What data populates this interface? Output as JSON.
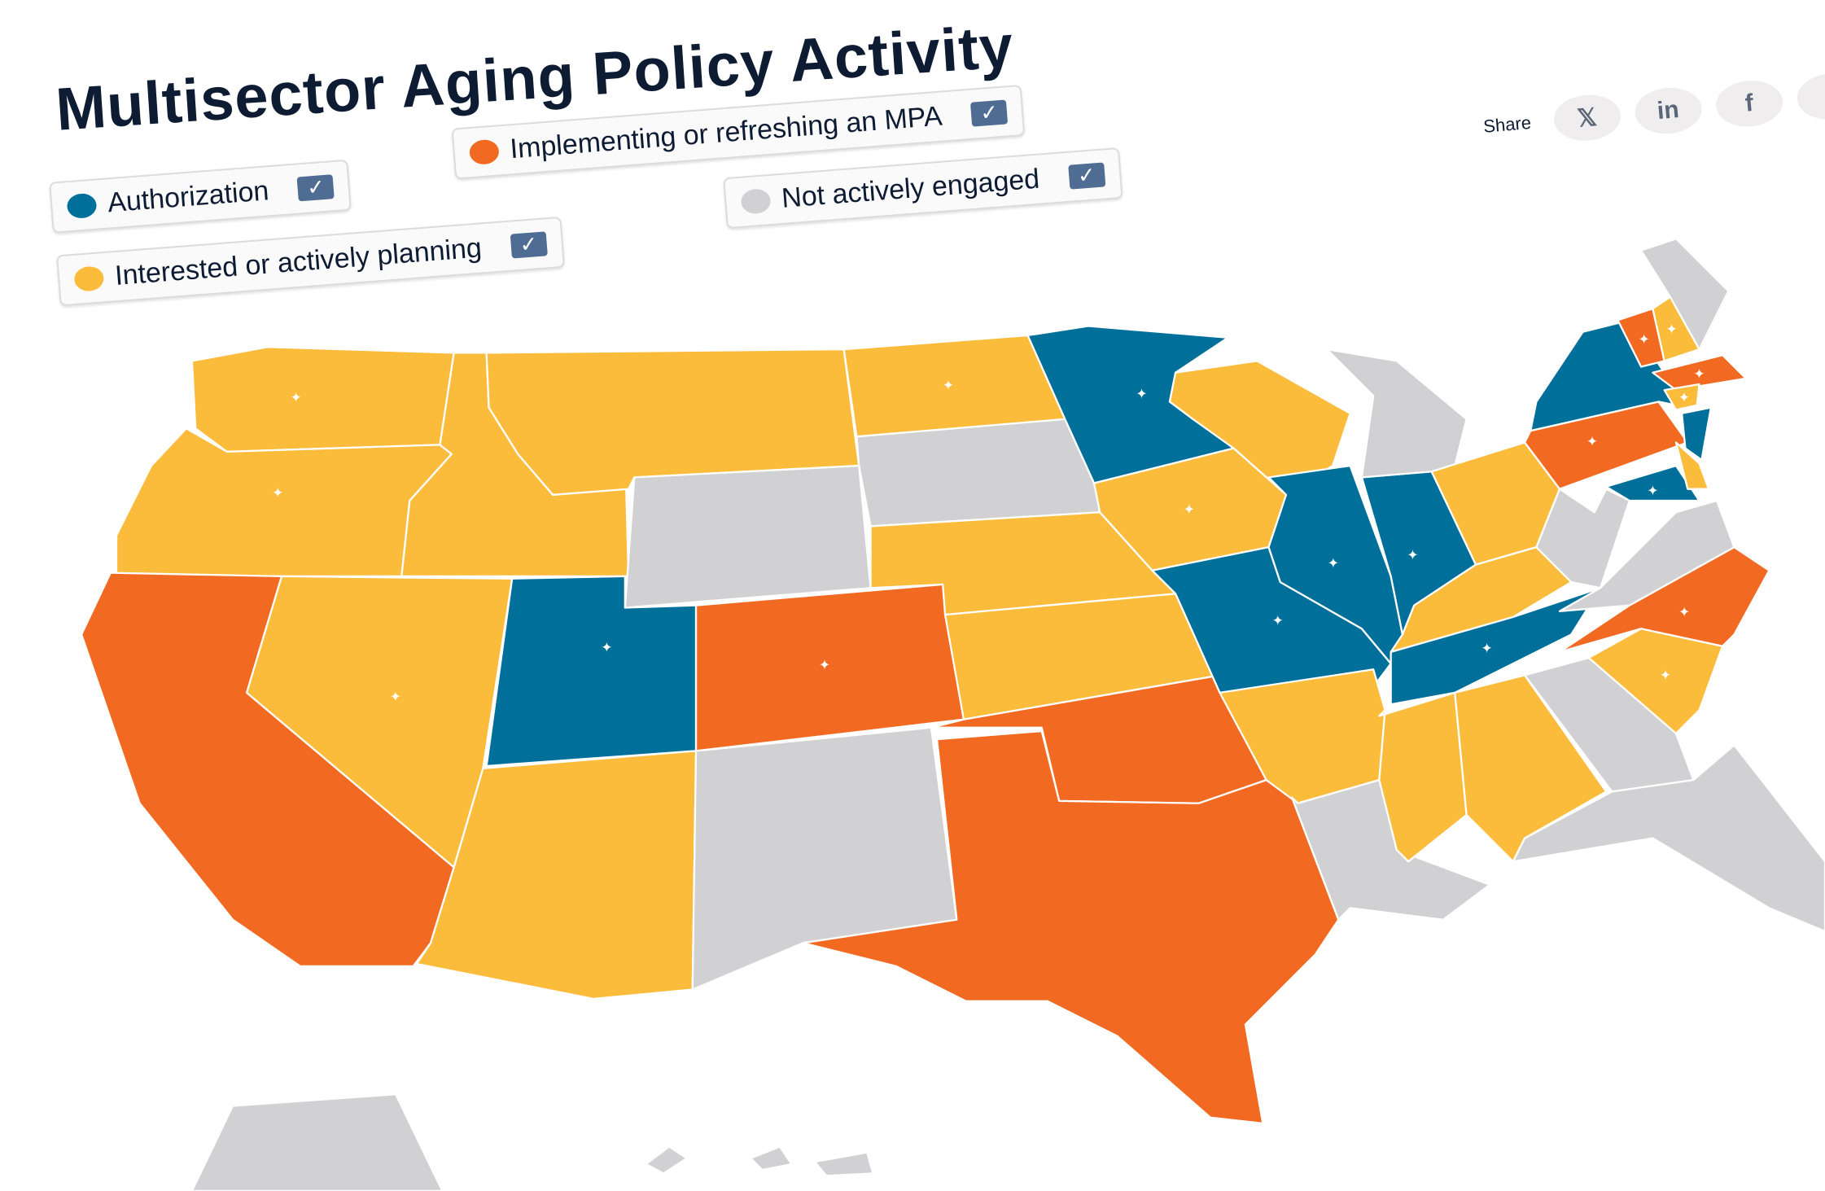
{
  "title": "Multisector Aging Policy Activity",
  "legend": [
    {
      "key": "authorization",
      "label": "Authorization",
      "color": "#00709a",
      "checked": true
    },
    {
      "key": "implementing",
      "label": "Implementing or refreshing an MPA",
      "color": "#f26a21",
      "checked": true
    },
    {
      "key": "interested",
      "label": "Interested or actively planning",
      "color": "#fbbb3b",
      "checked": true
    },
    {
      "key": "none",
      "label": "Not actively engaged",
      "color": "#d1d0d2",
      "checked": true
    }
  ],
  "share": {
    "label": "Share",
    "buttons": [
      {
        "name": "x",
        "icon": "x-logo-icon",
        "glyph": "𝕏"
      },
      {
        "name": "linkedin",
        "icon": "linkedin-icon",
        "glyph": "in"
      },
      {
        "name": "facebook",
        "icon": "facebook-icon",
        "glyph": "f"
      },
      {
        "name": "download",
        "icon": "download-icon",
        "glyph": "⤓"
      }
    ]
  },
  "states": [
    {
      "id": "WA",
      "status": "interested",
      "star": true
    },
    {
      "id": "OR",
      "status": "interested",
      "star": true
    },
    {
      "id": "CA",
      "status": "implementing",
      "star": false
    },
    {
      "id": "NV",
      "status": "interested",
      "star": true
    },
    {
      "id": "ID",
      "status": "interested",
      "star": false
    },
    {
      "id": "MT",
      "status": "interested",
      "star": false
    },
    {
      "id": "WY",
      "status": "none",
      "star": false
    },
    {
      "id": "UT",
      "status": "authorization",
      "star": true
    },
    {
      "id": "AZ",
      "status": "interested",
      "star": false
    },
    {
      "id": "CO",
      "status": "implementing",
      "star": true
    },
    {
      "id": "NM",
      "status": "none",
      "star": false
    },
    {
      "id": "ND",
      "status": "interested",
      "star": true
    },
    {
      "id": "SD",
      "status": "none",
      "star": false
    },
    {
      "id": "NE",
      "status": "interested",
      "star": false
    },
    {
      "id": "KS",
      "status": "interested",
      "star": false
    },
    {
      "id": "OK",
      "status": "implementing",
      "star": false
    },
    {
      "id": "TX",
      "status": "implementing",
      "star": false
    },
    {
      "id": "MN",
      "status": "authorization",
      "star": true
    },
    {
      "id": "IA",
      "status": "interested",
      "star": true
    },
    {
      "id": "MO",
      "status": "authorization",
      "star": true
    },
    {
      "id": "AR",
      "status": "interested",
      "star": false
    },
    {
      "id": "LA",
      "status": "none",
      "star": false
    },
    {
      "id": "WI",
      "status": "interested",
      "star": false
    },
    {
      "id": "IL",
      "status": "authorization",
      "star": true
    },
    {
      "id": "IN",
      "status": "authorization",
      "star": true
    },
    {
      "id": "MI",
      "status": "none",
      "star": false
    },
    {
      "id": "OH",
      "status": "interested",
      "star": false
    },
    {
      "id": "KY",
      "status": "interested",
      "star": false
    },
    {
      "id": "TN",
      "status": "authorization",
      "star": true
    },
    {
      "id": "MS",
      "status": "interested",
      "star": false
    },
    {
      "id": "AL",
      "status": "interested",
      "star": false
    },
    {
      "id": "GA",
      "status": "none",
      "star": false
    },
    {
      "id": "FL",
      "status": "none",
      "star": false
    },
    {
      "id": "SC",
      "status": "interested",
      "star": true
    },
    {
      "id": "NC",
      "status": "implementing",
      "star": true
    },
    {
      "id": "VA",
      "status": "none",
      "star": false
    },
    {
      "id": "WV",
      "status": "none",
      "star": false
    },
    {
      "id": "PA",
      "status": "implementing",
      "star": true
    },
    {
      "id": "NY",
      "status": "authorization",
      "star": false
    },
    {
      "id": "MD",
      "status": "authorization",
      "star": true
    },
    {
      "id": "NJ",
      "status": "authorization",
      "star": false
    },
    {
      "id": "DE",
      "status": "interested",
      "star": false
    },
    {
      "id": "VT",
      "status": "implementing",
      "star": true
    },
    {
      "id": "NH",
      "status": "interested",
      "star": true
    },
    {
      "id": "ME",
      "status": "none",
      "star": false
    },
    {
      "id": "MA",
      "status": "implementing",
      "star": true
    },
    {
      "id": "CT",
      "status": "interested",
      "star": true
    },
    {
      "id": "AK",
      "status": "none",
      "star": false
    },
    {
      "id": "HI",
      "status": "none",
      "star": false
    }
  ]
}
